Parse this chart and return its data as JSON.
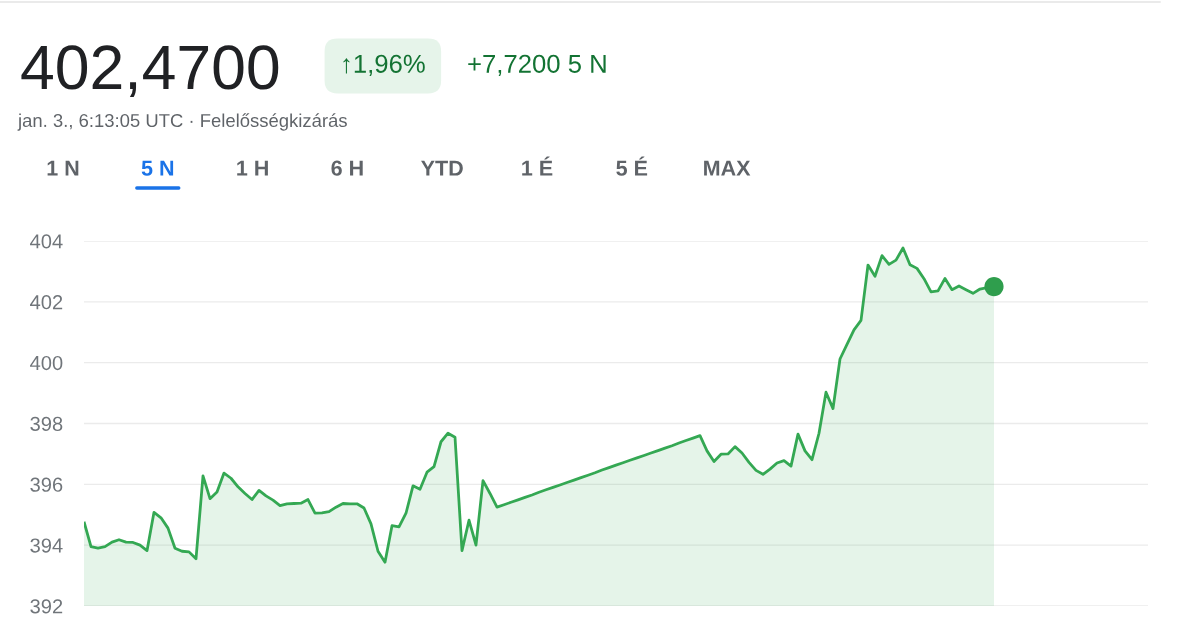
{
  "chart_data": {
    "type": "area",
    "title": "402,4700",
    "subtitle": "jan. 3., 6:13:05 UTC · Felelősségkizárás",
    "annotations": [
      "↑1,96%",
      "+7,7200 5 N",
      "1 N",
      "5 N",
      "1 H",
      "6 H",
      "YTD",
      "1 É",
      "5 É",
      "MAX"
    ],
    "categories": [
      null,
      null,
      null,
      null,
      null,
      null,
      null,
      null,
      null,
      null,
      null,
      null,
      null,
      null,
      null,
      null,
      null,
      null,
      null,
      null,
      null,
      null,
      null,
      null,
      null,
      null,
      null,
      null,
      null,
      null,
      null,
      null,
      null,
      null,
      null,
      null,
      null,
      null,
      null,
      null,
      null,
      null,
      null,
      null,
      null,
      null,
      null,
      null,
      null,
      null,
      null,
      null,
      null,
      null,
      null,
      null,
      null,
      null,
      null,
      null,
      null,
      null,
      null,
      null,
      null,
      null,
      null,
      null,
      null,
      null,
      null,
      null,
      null,
      null,
      null,
      null,
      null,
      null,
      null,
      null,
      null,
      null,
      null,
      null,
      null,
      null,
      null,
      null,
      null,
      null,
      null,
      null,
      null,
      null,
      null,
      null,
      null,
      null,
      null,
      null,
      null,
      null,
      null,
      null,
      null,
      null,
      null,
      null,
      null,
      null,
      null,
      null,
      null,
      null,
      null,
      null,
      null,
      null,
      null,
      null,
      null,
      null,
      null,
      null,
      null,
      null,
      null,
      null,
      null,
      null,
      null
    ],
    "series": [
      {
        "color": "#34a853",
        "values": [
          394.77,
          393.95,
          393.9,
          393.95,
          394.1,
          394.18,
          394.1,
          394.09,
          394.0,
          393.82,
          395.08,
          394.9,
          394.56,
          393.9,
          393.8,
          393.78,
          393.55,
          396.28,
          395.53,
          395.75,
          396.37,
          396.2,
          395.92,
          395.7,
          395.5,
          395.8,
          395.62,
          395.48,
          395.3,
          395.36,
          395.37,
          395.38,
          395.5,
          395.05,
          395.06,
          395.1,
          395.25,
          395.37,
          395.36,
          395.36,
          395.22,
          394.7,
          393.8,
          393.44,
          394.64,
          394.6,
          395.05,
          395.95,
          395.84,
          396.4,
          396.58,
          397.4,
          397.68,
          397.55,
          393.82,
          394.82,
          394.0,
          396.12,
          395.7,
          395.25,
          395.33,
          395.41,
          395.49,
          395.57,
          395.65,
          395.74,
          395.82,
          395.9,
          395.98,
          396.06,
          396.14,
          396.22,
          396.3,
          396.38,
          396.47,
          396.55,
          396.63,
          396.71,
          396.79,
          396.87,
          396.95,
          397.03,
          397.11,
          397.19,
          397.27,
          397.36,
          397.44,
          397.52,
          397.6,
          397.1,
          396.75,
          396.99,
          397.0,
          397.24,
          397.03,
          396.72,
          396.46,
          396.33,
          396.5,
          396.7,
          396.78,
          396.6,
          397.65,
          397.1,
          396.81,
          397.68,
          399.03,
          398.49,
          400.12,
          400.6,
          401.08,
          401.39,
          403.21,
          402.84,
          403.52,
          403.23,
          403.37,
          403.77,
          403.22,
          403.1,
          402.76,
          402.33,
          402.36,
          402.77,
          402.4,
          402.52,
          402.4,
          402.28,
          402.42,
          402.47,
          402.5
        ]
      },
      {
        "type": "scatter",
        "color": "#2f9e4d",
        "marker": "circle",
        "values": [
          null,
          null,
          null,
          null,
          null,
          null,
          null,
          null,
          null,
          null,
          null,
          null,
          null,
          null,
          null,
          null,
          null,
          null,
          null,
          null,
          null,
          null,
          null,
          null,
          null,
          null,
          null,
          null,
          null,
          null,
          null,
          null,
          null,
          null,
          null,
          null,
          null,
          null,
          null,
          null,
          null,
          null,
          null,
          null,
          null,
          null,
          null,
          null,
          null,
          null,
          null,
          null,
          null,
          null,
          null,
          null,
          null,
          null,
          null,
          null,
          null,
          null,
          null,
          null,
          null,
          null,
          null,
          null,
          null,
          null,
          null,
          null,
          null,
          null,
          null,
          null,
          null,
          null,
          null,
          null,
          null,
          null,
          null,
          null,
          null,
          null,
          null,
          null,
          null,
          null,
          null,
          null,
          null,
          null,
          null,
          null,
          null,
          null,
          null,
          null,
          null,
          null,
          null,
          null,
          null,
          null,
          null,
          null,
          null,
          null,
          null,
          null,
          null,
          null,
          null,
          null,
          null,
          null,
          null,
          null,
          null,
          null,
          null,
          null,
          null,
          null,
          null,
          null,
          null,
          null,
          402.5
        ]
      }
    ],
    "ylim": [
      392,
      404
    ],
    "yticks": [
      392,
      394,
      396,
      398,
      400,
      402,
      404
    ],
    "grid": "y",
    "tick_labels": "y"
  }
}
